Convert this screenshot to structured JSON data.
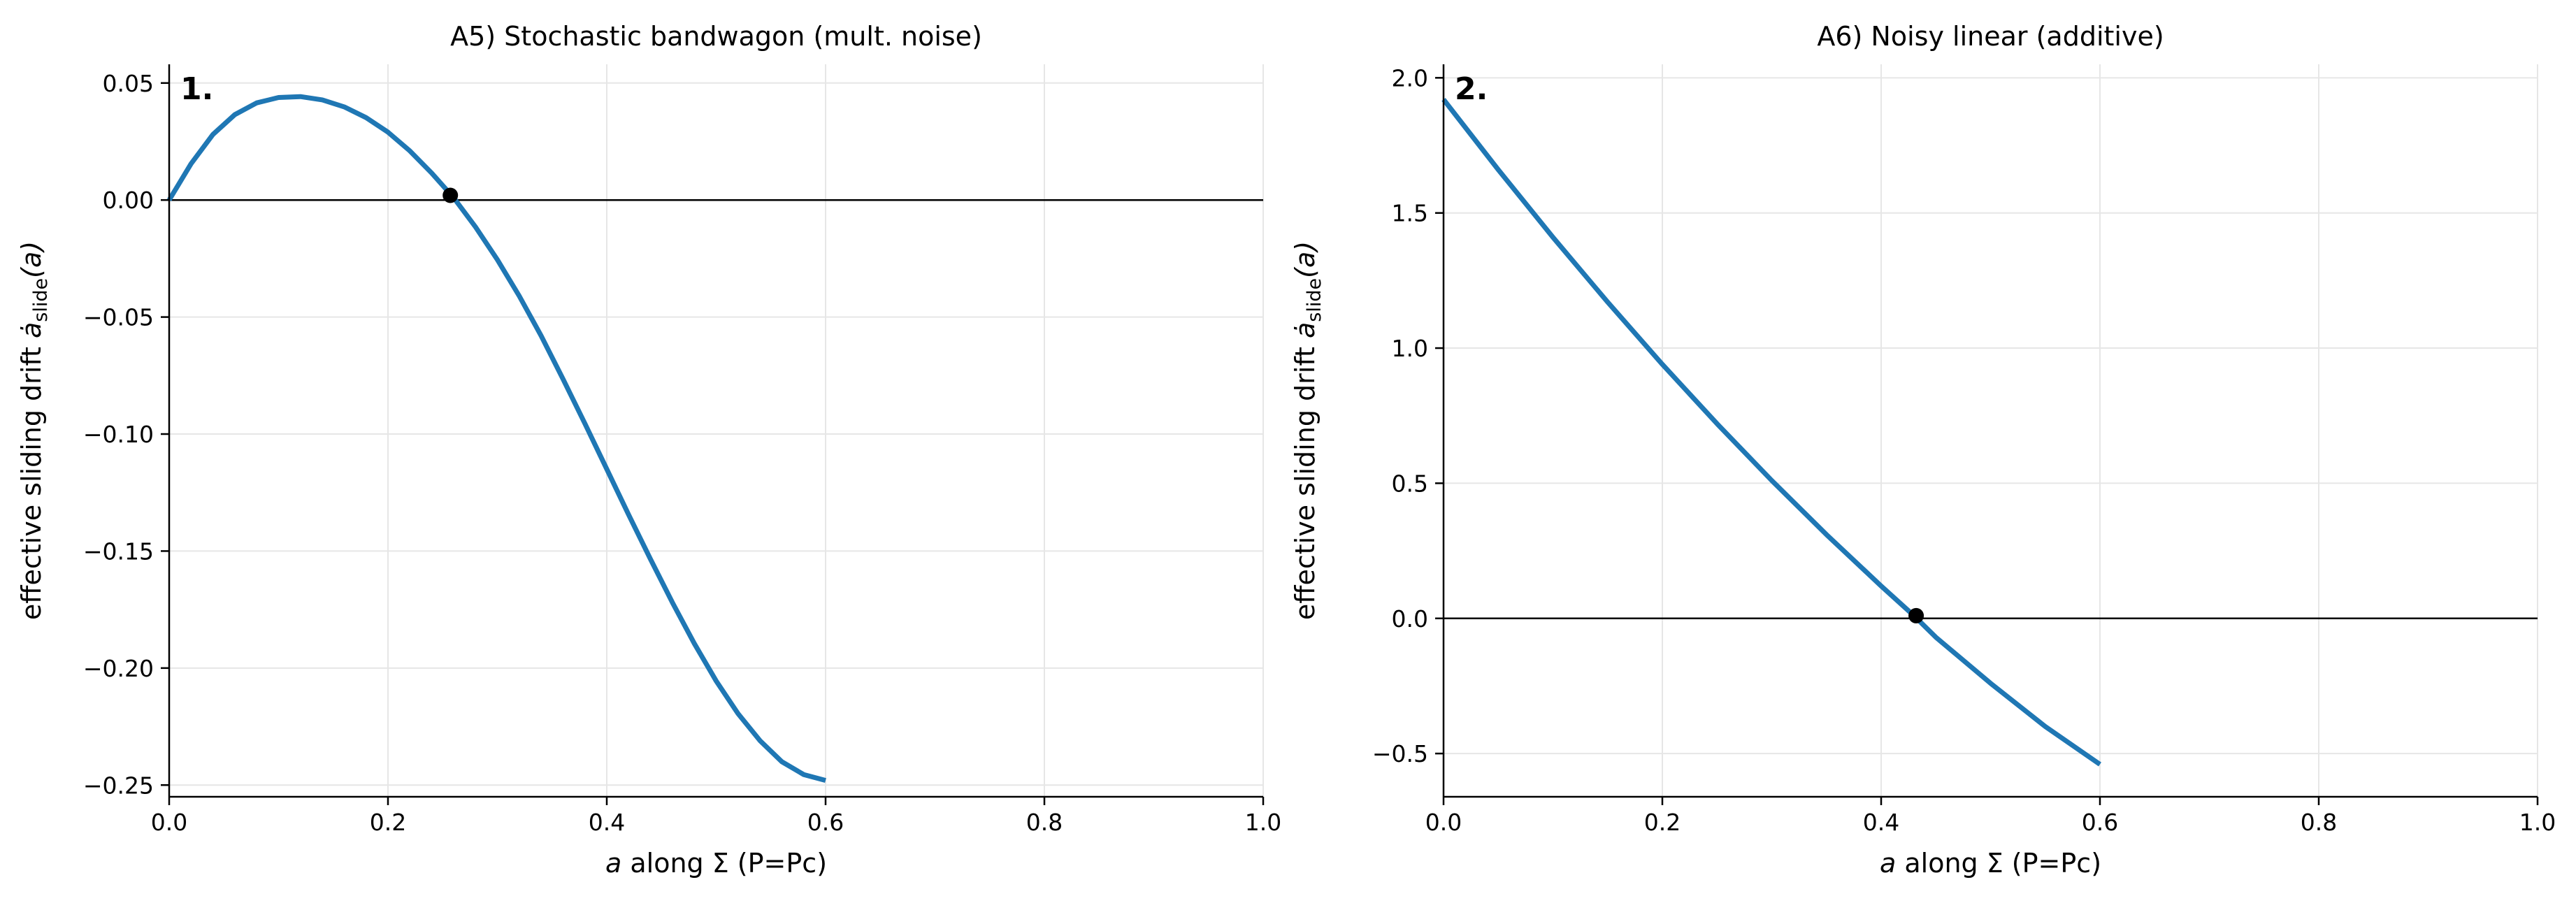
{
  "chart_data": [
    {
      "type": "line",
      "panel_label": "1.",
      "title": "A5) Stochastic bandwagon (mult. noise)",
      "xlabel_italic": "a",
      "xlabel_rest": " along Σ (P=Pc)",
      "ylabel_main": "effective sliding drift ",
      "ylabel_sym": "ȧ",
      "ylabel_sub": "slide",
      "ylabel_arg": "(a)",
      "xlim": [
        0.0,
        1.0
      ],
      "ylim": [
        -0.255,
        0.058
      ],
      "xticks": [
        0.0,
        0.2,
        0.4,
        0.6,
        0.8,
        1.0
      ],
      "xtick_labels": [
        "0.0",
        "0.2",
        "0.4",
        "0.6",
        "0.8",
        "1.0"
      ],
      "yticks": [
        0.05,
        0.0,
        -0.05,
        -0.1,
        -0.15,
        -0.2,
        -0.25
      ],
      "ytick_labels": [
        "0.05",
        "0.00",
        "−0.05",
        "−0.10",
        "−0.15",
        "−0.20",
        "−0.25"
      ],
      "grid": true,
      "zero_line": 0.0,
      "series": [
        {
          "color": "#1f77b4",
          "x": [
            0.0,
            0.02,
            0.04,
            0.06,
            0.08,
            0.1,
            0.12,
            0.14,
            0.16,
            0.18,
            0.2,
            0.22,
            0.24,
            0.26,
            0.28,
            0.3,
            0.32,
            0.34,
            0.36,
            0.38,
            0.4,
            0.42,
            0.44,
            0.46,
            0.48,
            0.5,
            0.52,
            0.54,
            0.56,
            0.58,
            0.6
          ],
          "y": [
            0.0,
            0.0155,
            0.028,
            0.0365,
            0.0415,
            0.0438,
            0.0442,
            0.0428,
            0.0398,
            0.0352,
            0.029,
            0.021,
            0.0115,
            0.001,
            -0.0115,
            -0.0255,
            -0.041,
            -0.058,
            -0.0765,
            -0.0955,
            -0.115,
            -0.1345,
            -0.1535,
            -0.172,
            -0.1895,
            -0.2055,
            -0.2195,
            -0.231,
            -0.24,
            -0.2455,
            -0.248
          ]
        }
      ],
      "fixed_points": [
        {
          "x": 0.257,
          "y": 0.002
        }
      ]
    },
    {
      "type": "line",
      "panel_label": "2.",
      "title": "A6) Noisy linear (additive)",
      "xlabel_italic": "a",
      "xlabel_rest": " along Σ (P=Pc)",
      "ylabel_main": "effective sliding drift ",
      "ylabel_sym": "ȧ",
      "ylabel_sub": "slide",
      "ylabel_arg": "(a)",
      "xlim": [
        0.0,
        1.0
      ],
      "ylim": [
        -0.66,
        2.05
      ],
      "xticks": [
        0.0,
        0.2,
        0.4,
        0.6,
        0.8,
        1.0
      ],
      "xtick_labels": [
        "0.0",
        "0.2",
        "0.4",
        "0.6",
        "0.8",
        "1.0"
      ],
      "yticks": [
        2.0,
        1.5,
        1.0,
        0.5,
        0.0,
        -0.5
      ],
      "ytick_labels": [
        "2.0",
        "1.5",
        "1.0",
        "0.5",
        "0.0",
        "−0.5"
      ],
      "grid": true,
      "zero_line": 0.0,
      "series": [
        {
          "color": "#1f77b4",
          "x": [
            0.0,
            0.05,
            0.1,
            0.15,
            0.2,
            0.25,
            0.3,
            0.35,
            0.4,
            0.43,
            0.45,
            0.5,
            0.55,
            0.6
          ],
          "y": [
            1.92,
            1.66,
            1.41,
            1.17,
            0.94,
            0.72,
            0.51,
            0.31,
            0.12,
            0.01,
            -0.07,
            -0.24,
            -0.4,
            -0.54
          ]
        }
      ],
      "fixed_points": [
        {
          "x": 0.432,
          "y": 0.01
        }
      ]
    }
  ]
}
